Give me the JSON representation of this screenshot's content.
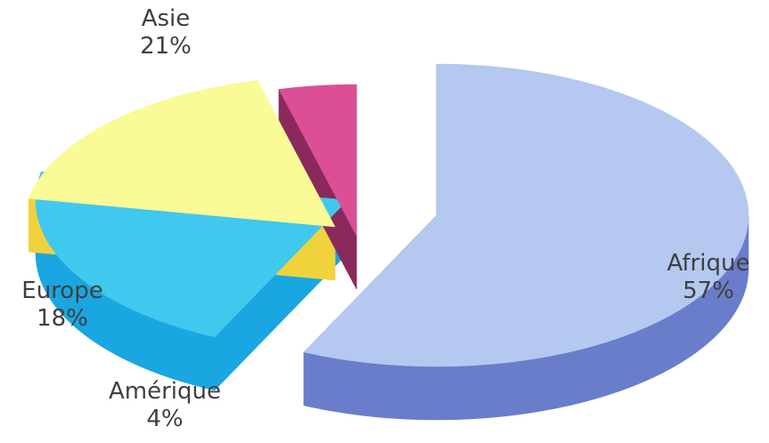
{
  "chart_data": {
    "type": "pie",
    "title": "",
    "categories": [
      "Afrique",
      "Asie",
      "Europe",
      "Amérique"
    ],
    "values": [
      57,
      21,
      18,
      4
    ],
    "value_labels": [
      "57%",
      "21%",
      "18%",
      "4%"
    ],
    "unit": "%",
    "exploded": true,
    "three_d": true,
    "legend": "none",
    "colors": {
      "Afrique": {
        "top": "#b4c8f0",
        "side": "#6a7dca"
      },
      "Asie": {
        "top": "#41c8ee",
        "side": "#1aa6e0"
      },
      "Europe": {
        "top": "#fafa96",
        "side": "#f0d23c"
      },
      "Amérique": {
        "top": "#dc4f94",
        "side": "#8a2a5c"
      }
    }
  }
}
